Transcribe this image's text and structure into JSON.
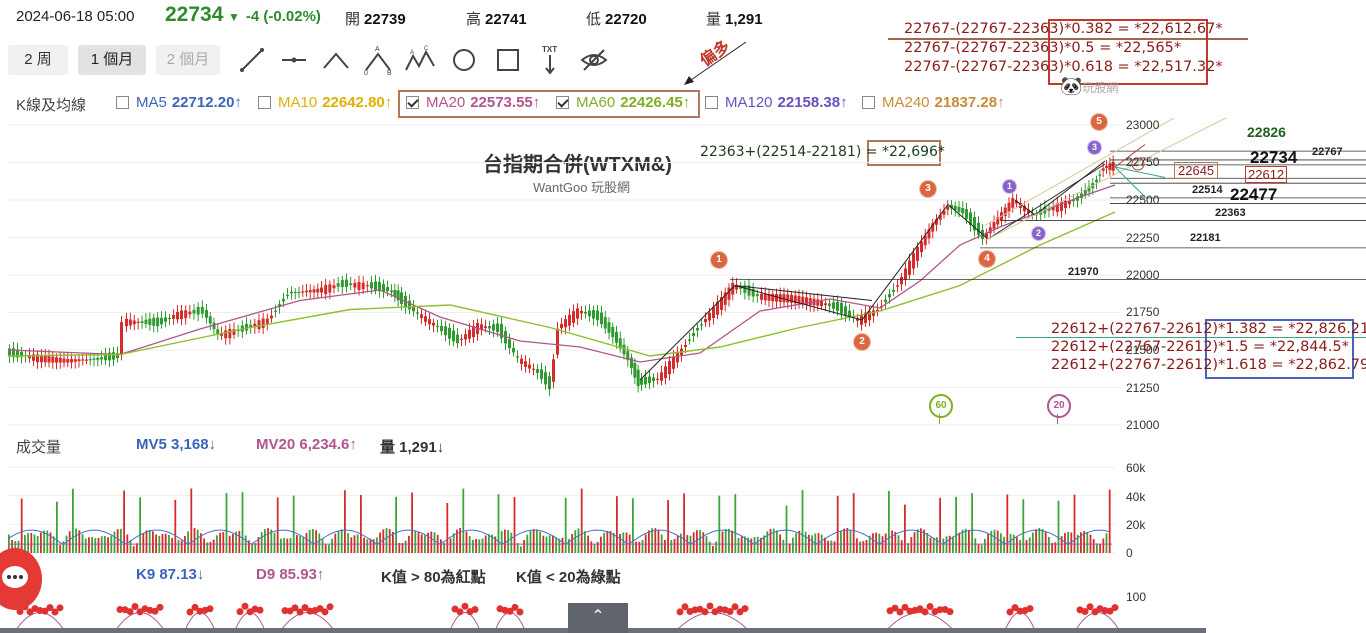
{
  "header": {
    "datetime": "2024-06-18 05:00",
    "price": "22734",
    "change": "-4 (-0.02%)",
    "open_label": "開",
    "open_value": "22739",
    "high_label": "高",
    "high_value": "22741",
    "low_label": "低",
    "low_value": "22720",
    "volume_label": "量",
    "volume_value": "1,291"
  },
  "periods": [
    "2 周",
    "1 個月",
    "2 個月"
  ],
  "active_period": "1 個月",
  "annotation_bias": "偏多",
  "ma": {
    "label": "K線及均線",
    "items": [
      {
        "name": "MA5",
        "value": "22712.20↑",
        "checked": false,
        "color": "#3b63b8"
      },
      {
        "name": "MA10",
        "value": "22642.80↑",
        "checked": false,
        "color": "#e0b000"
      },
      {
        "name": "MA20",
        "value": "22573.55↑",
        "checked": true,
        "color": "#b0568f"
      },
      {
        "name": "MA60",
        "value": "22426.45↑",
        "checked": true,
        "color": "#7fae25"
      },
      {
        "name": "MA120",
        "value": "22158.38↑",
        "checked": false,
        "color": "#6a4fc0"
      },
      {
        "name": "MA240",
        "value": "21837.28↑",
        "checked": false,
        "color": "#c98a3a"
      }
    ]
  },
  "fib_retrace": [
    "22767-(22767-22363)*0.382 = *22,612.67*",
    "22767-(22767-22363)*0.5 = *22,565*",
    "22767-(22767-22363)*0.618 = *22,517.32*"
  ],
  "fib_extend": [
    "22612+(22767-22612)*1.382 = *22,826.21*",
    "22612+(22767-22612)*1.5 = *22,844.5*",
    "22612+(22767-22612)*1.618 = *22,862.79*"
  ],
  "calc_note": "22363+(22514-22181) = *22,696*",
  "watermark": "玩股網",
  "chart_data": {
    "type": "candlestick",
    "title": "台指期合併(WTXM&)",
    "subtitle": "WantGoo 玩股網",
    "y_ticks": [
      "23000",
      "22750",
      "22500",
      "22250",
      "22000",
      "21750",
      "21500",
      "21250",
      "21000"
    ],
    "ylim": [
      21000,
      23000
    ],
    "levels": [
      {
        "label": "22826",
        "value": 22826
      },
      {
        "label": "22767",
        "value": 22767
      },
      {
        "label": "22734",
        "value": 22734
      },
      {
        "label": "22645",
        "value": 22645
      },
      {
        "label": "22612",
        "value": 22612
      },
      {
        "label": "22514",
        "value": 22514
      },
      {
        "label": "22477",
        "value": 22477
      },
      {
        "label": "22363",
        "value": 22363
      },
      {
        "label": "22181",
        "value": 22181
      },
      {
        "label": "21970",
        "value": 21970
      }
    ],
    "wave_marks": [
      "1",
      "2",
      "3",
      "4",
      "5",
      "1",
      "2",
      "3"
    ],
    "ma_markers": [
      "60",
      "20"
    ],
    "volume": {
      "label": "成交量",
      "mv5": "MV5 3,168↓",
      "mv20": "MV20 6,234.6↑",
      "vol": "量 1,291↓",
      "y_ticks": [
        "60k",
        "40k",
        "20k",
        "0"
      ]
    },
    "kd": {
      "k9": "K9 87.13↓",
      "d9": "D9 85.93↑",
      "note1": "K值 > 80為紅點",
      "note2": "K值 < 20為綠點",
      "y_tick": "100"
    }
  }
}
